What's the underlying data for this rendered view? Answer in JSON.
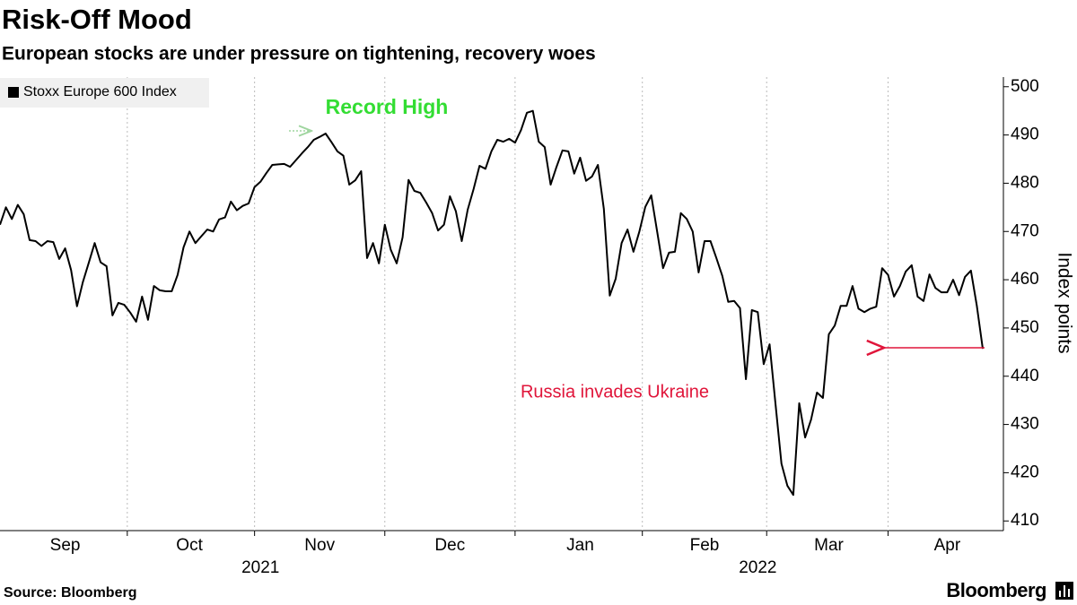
{
  "chart_data": {
    "type": "line",
    "title": "Risk-Off Mood",
    "subtitle": "European stocks are under pressure on tightening, recovery woes",
    "y_axis_label": "Index points",
    "source": "Source: Bloomberg",
    "brand": "Bloomberg",
    "annotations": [
      "Record High",
      "Russia invades Ukraine"
    ],
    "ylim": [
      408,
      502
    ],
    "yticks": [
      410,
      420,
      430,
      440,
      450,
      460,
      470,
      480,
      490,
      500
    ],
    "categories": [
      null,
      null,
      null,
      null,
      null,
      null,
      null,
      null,
      null,
      null,
      null,
      "Sep",
      null,
      null,
      null,
      null,
      null,
      null,
      null,
      null,
      null,
      null,
      null,
      null,
      null,
      null,
      null,
      null,
      null,
      null,
      null,
      null,
      "Oct",
      null,
      null,
      null,
      null,
      null,
      null,
      null,
      null,
      null,
      null,
      null,
      null,
      null,
      null,
      null,
      null,
      null,
      null,
      null,
      null,
      null,
      "Nov",
      null,
      null,
      null,
      null,
      null,
      null,
      null,
      null,
      null,
      null,
      null,
      null,
      null,
      null,
      null,
      null,
      null,
      null,
      null,
      null,
      null,
      "Dec",
      null,
      null,
      null,
      null,
      null,
      null,
      null,
      null,
      null,
      null,
      null,
      null,
      null,
      null,
      null,
      null,
      null,
      null,
      null,
      null,
      null,
      "Jan",
      null,
      null,
      null,
      null,
      null,
      null,
      null,
      null,
      null,
      null,
      null,
      null,
      null,
      null,
      null,
      null,
      null,
      null,
      null,
      null,
      "Feb",
      null,
      null,
      null,
      null,
      null,
      null,
      null,
      null,
      null,
      null,
      null,
      null,
      null,
      null,
      null,
      null,
      null,
      null,
      null,
      null,
      "Mar",
      null,
      null,
      null,
      null,
      null,
      null,
      null,
      null,
      null,
      null,
      null,
      null,
      null,
      null,
      null,
      null,
      null,
      null,
      null,
      "Apr",
      null,
      null,
      null,
      null,
      null,
      null
    ],
    "categories2": [
      null,
      null,
      null,
      null,
      null,
      null,
      null,
      null,
      null,
      null,
      null,
      null,
      null,
      null,
      null,
      null,
      null,
      null,
      null,
      null,
      null,
      null,
      null,
      null,
      null,
      null,
      null,
      null,
      null,
      null,
      null,
      null,
      null,
      null,
      null,
      null,
      null,
      null,
      null,
      null,
      null,
      null,
      null,
      null,
      "2021",
      null,
      null,
      null,
      null,
      null,
      null,
      null,
      null,
      null,
      null,
      null,
      null,
      null,
      null,
      null,
      null,
      null,
      null,
      null,
      null,
      null,
      null,
      null,
      null,
      null,
      null,
      null,
      null,
      null,
      null,
      null,
      null,
      null,
      null,
      null,
      null,
      null,
      null,
      null,
      null,
      null,
      null,
      null,
      null,
      null,
      null,
      null,
      null,
      null,
      null,
      null,
      null,
      null,
      null,
      null,
      null,
      null,
      null,
      null,
      null,
      null,
      null,
      null,
      null,
      null,
      null,
      null,
      null,
      null,
      null,
      null,
      null,
      null,
      null,
      null,
      null,
      null,
      null,
      null,
      null,
      null,
      null,
      null,
      "2022",
      null,
      null,
      null,
      null,
      null,
      null,
      null,
      null,
      null,
      null,
      null,
      null,
      null,
      null,
      null,
      null,
      null,
      null,
      null,
      null,
      null,
      null,
      null,
      null,
      null,
      null,
      null,
      null,
      null,
      null,
      null,
      null,
      null,
      null,
      null,
      null,
      null,
      null,
      null
    ],
    "series": [
      {
        "name": "Stoxx Europe 600 Index",
        "color": "#000000",
        "values": [
          471.4,
          475,
          472.6,
          475.5,
          473.6,
          468.2,
          468,
          467,
          468,
          467.8,
          464.3,
          466.5,
          462,
          454.5,
          459.5,
          463.5,
          467.6,
          463.6,
          462.8,
          452.6,
          455.2,
          454.8,
          453.2,
          451.3,
          456.5,
          451.7,
          458.7,
          457.8,
          457.6,
          457.6,
          461,
          466.7,
          470,
          467.6,
          469,
          470.4,
          470,
          472.5,
          472.9,
          476.2,
          474.4,
          475.3,
          475.8,
          479.2,
          480.3,
          482.1,
          483.8,
          483.9,
          484,
          483.4,
          484.8,
          486.2,
          487.5,
          489,
          489.6,
          490.3,
          488.5,
          486.6,
          485.7,
          479.7,
          480.6,
          482.5,
          464.5,
          467.6,
          463.4,
          471.4,
          466.2,
          463.4,
          468.8,
          480.7,
          478.4,
          478,
          476,
          473.8,
          470.2,
          471.4,
          477.3,
          474.2,
          468,
          474.5,
          478.8,
          483.6,
          483,
          486.6,
          489,
          488.6,
          489.2,
          488.4,
          491,
          494.6,
          495,
          488.6,
          487.5,
          479.7,
          483.4,
          486.8,
          486.6,
          482,
          485.3,
          480.5,
          481.4,
          483.8,
          474.7,
          456.7,
          460.2,
          467.6,
          470.4,
          465.8,
          470,
          475.1,
          477.5,
          470,
          462.4,
          465.6,
          465.8,
          473.8,
          472.6,
          470,
          461.5,
          468,
          468,
          464.5,
          460.8,
          455.4,
          455.6,
          454.1,
          439.4,
          453.7,
          453.3,
          442.5,
          446.6,
          434.2,
          421.9,
          417.3,
          415.4,
          434.4,
          427.3,
          431,
          436.6,
          435.5,
          448.7,
          450.5,
          454.6,
          454.6,
          458.7,
          454,
          453.3,
          454,
          454.4,
          462.4,
          461,
          456.5,
          458.7,
          461.7,
          463,
          456.5,
          455.6,
          461.1,
          458.3,
          457.4,
          457.4,
          460,
          456.8,
          460.6,
          461.9,
          454.6,
          445.7
        ]
      }
    ]
  }
}
